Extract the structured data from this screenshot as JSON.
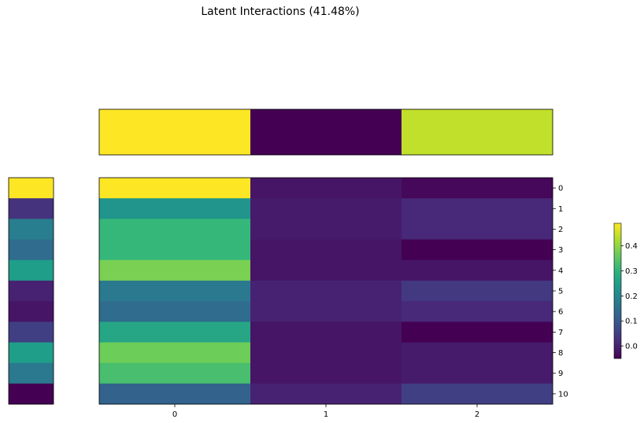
{
  "chart_data": {
    "type": "heatmap",
    "title": "Latent Interactions (41.48%)",
    "colormap": "viridis",
    "value_range": [
      -0.05,
      0.49
    ],
    "x_categories": [
      "0",
      "1",
      "2"
    ],
    "y_categories": [
      "0",
      "1",
      "2",
      "3",
      "4",
      "5",
      "6",
      "7",
      "8",
      "9",
      "10"
    ],
    "top_marginal": [
      0.49,
      -0.05,
      0.44
    ],
    "left_marginal": [
      0.49,
      0.03,
      0.18,
      0.14,
      0.25,
      0.0,
      -0.02,
      0.05,
      0.25,
      0.17,
      -0.05
    ],
    "matrix": [
      [
        0.49,
        -0.02,
        -0.04
      ],
      [
        0.23,
        -0.01,
        0.01
      ],
      [
        0.31,
        -0.01,
        0.01
      ],
      [
        0.31,
        -0.02,
        -0.05
      ],
      [
        0.38,
        -0.02,
        -0.02
      ],
      [
        0.17,
        0.0,
        0.04
      ],
      [
        0.14,
        0.0,
        0.01
      ],
      [
        0.27,
        -0.02,
        -0.05
      ],
      [
        0.37,
        -0.02,
        -0.01
      ],
      [
        0.33,
        -0.02,
        -0.01
      ],
      [
        0.12,
        0.0,
        0.05
      ]
    ],
    "colorbar": {
      "ticks": [
        0.0,
        0.1,
        0.2,
        0.3,
        0.4
      ],
      "tick_labels": [
        "0.0",
        "0.1",
        "0.2",
        "0.3",
        "0.4"
      ]
    }
  }
}
